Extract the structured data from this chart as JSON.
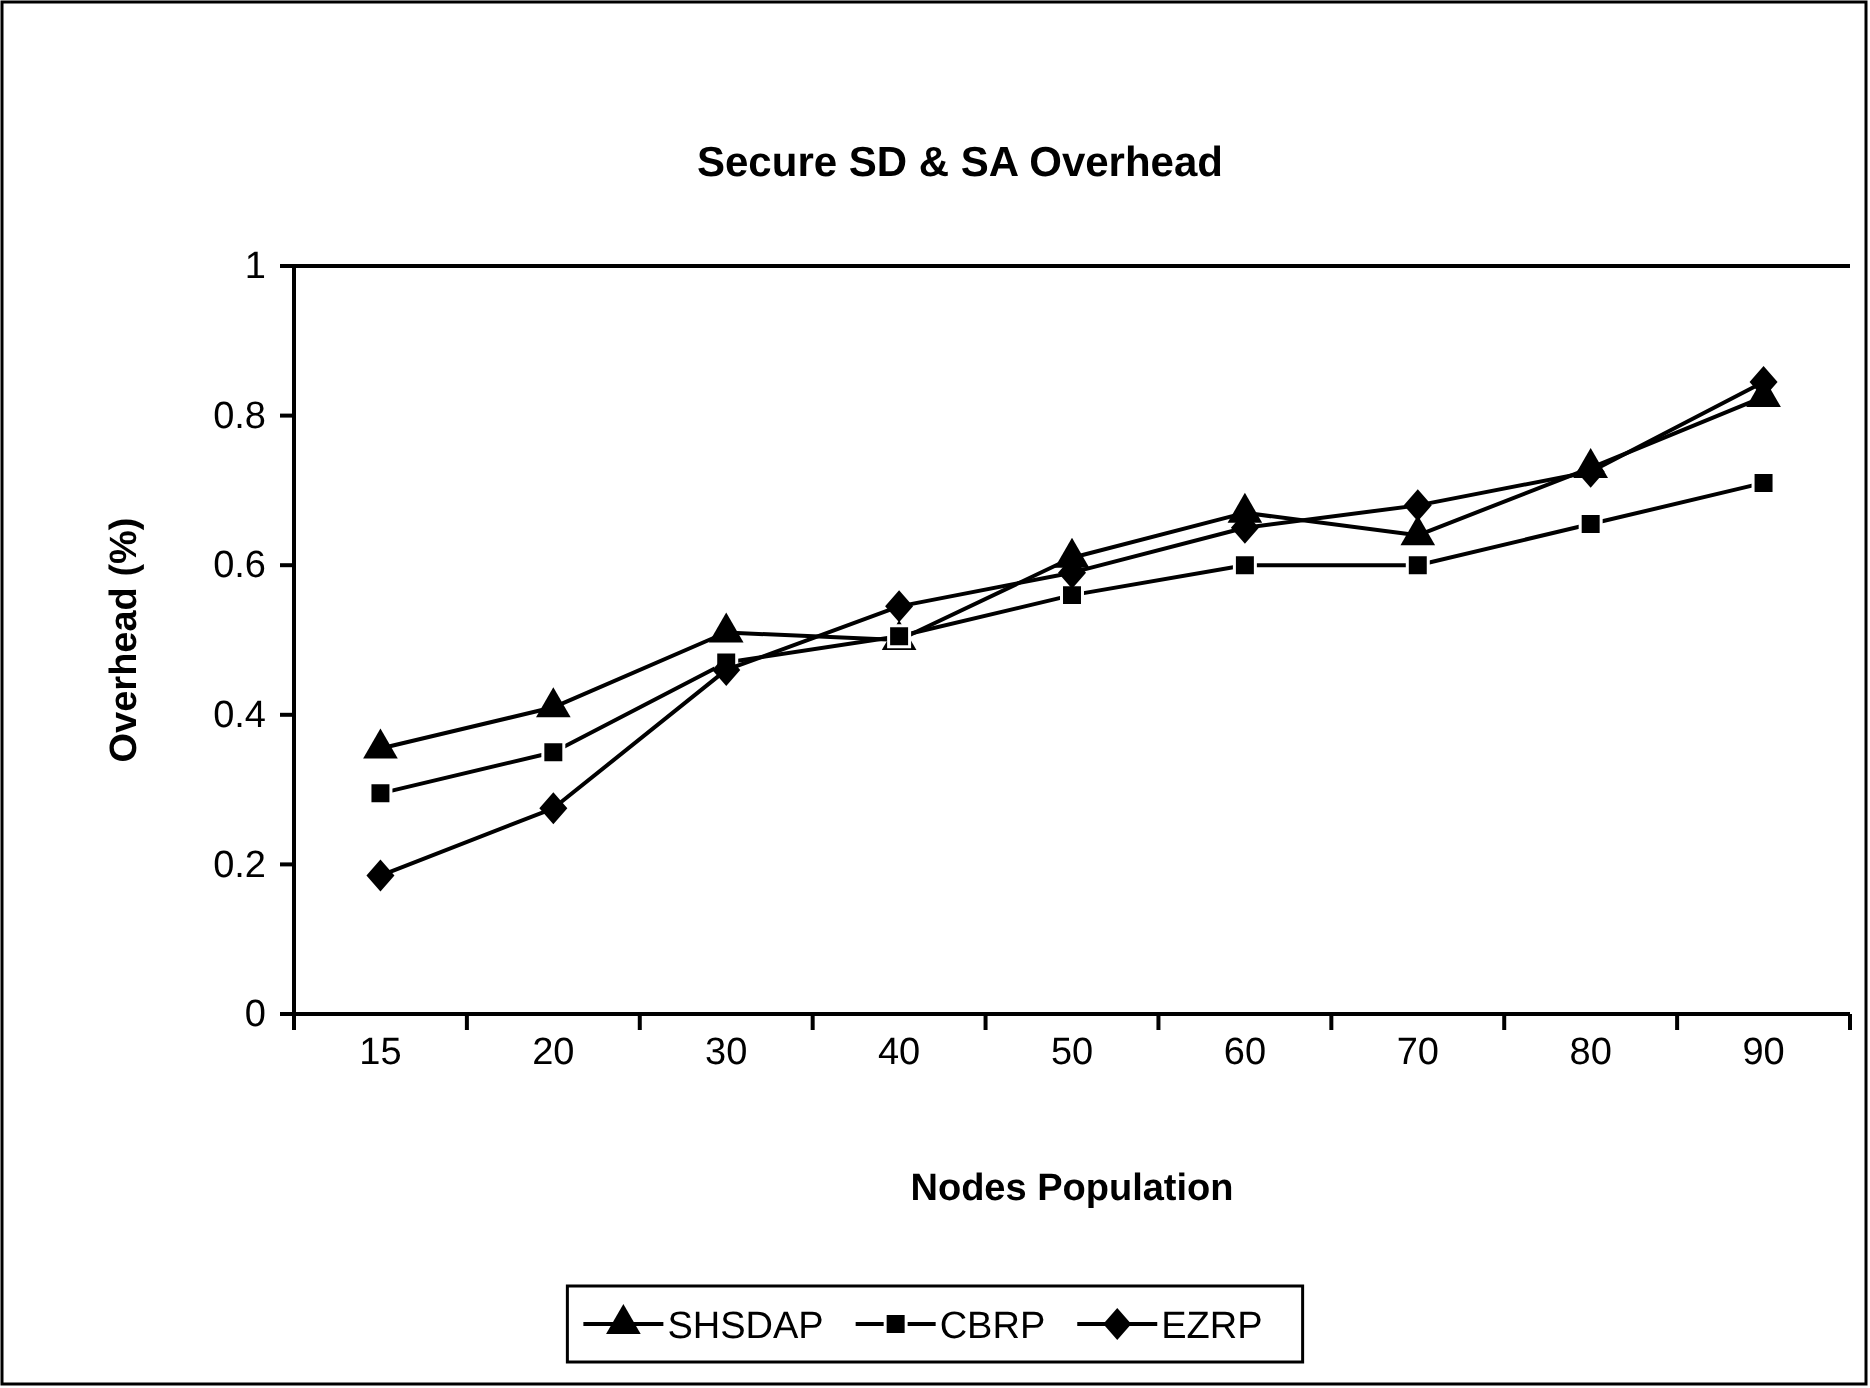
{
  "chart_data": {
    "type": "line",
    "title": "Secure SD & SA Overhead",
    "xlabel": "Nodes Population",
    "ylabel": "Overhead (%)",
    "categories": [
      "15",
      "20",
      "30",
      "40",
      "50",
      "60",
      "70",
      "80",
      "90"
    ],
    "ylim": [
      0,
      1
    ],
    "yticks": [
      0,
      0.2,
      0.4,
      0.6,
      0.8,
      1
    ],
    "legend": "bottom",
    "line_style": "solid",
    "series": [
      {
        "name": "SHSDAP",
        "color": "#000000",
        "marker": "triangle",
        "values": [
          0.355,
          0.41,
          0.51,
          0.5,
          0.61,
          0.67,
          0.64,
          0.73,
          0.825
        ]
      },
      {
        "name": "CBRP",
        "color": "#000000",
        "marker": "square",
        "values": [
          0.295,
          0.35,
          0.47,
          0.505,
          0.56,
          0.6,
          0.6,
          0.655,
          0.71
        ]
      },
      {
        "name": "EZRP",
        "color": "#000000",
        "marker": "diamond",
        "values": [
          0.185,
          0.275,
          0.46,
          0.545,
          0.59,
          0.65,
          0.68,
          0.725,
          0.845
        ]
      }
    ]
  }
}
